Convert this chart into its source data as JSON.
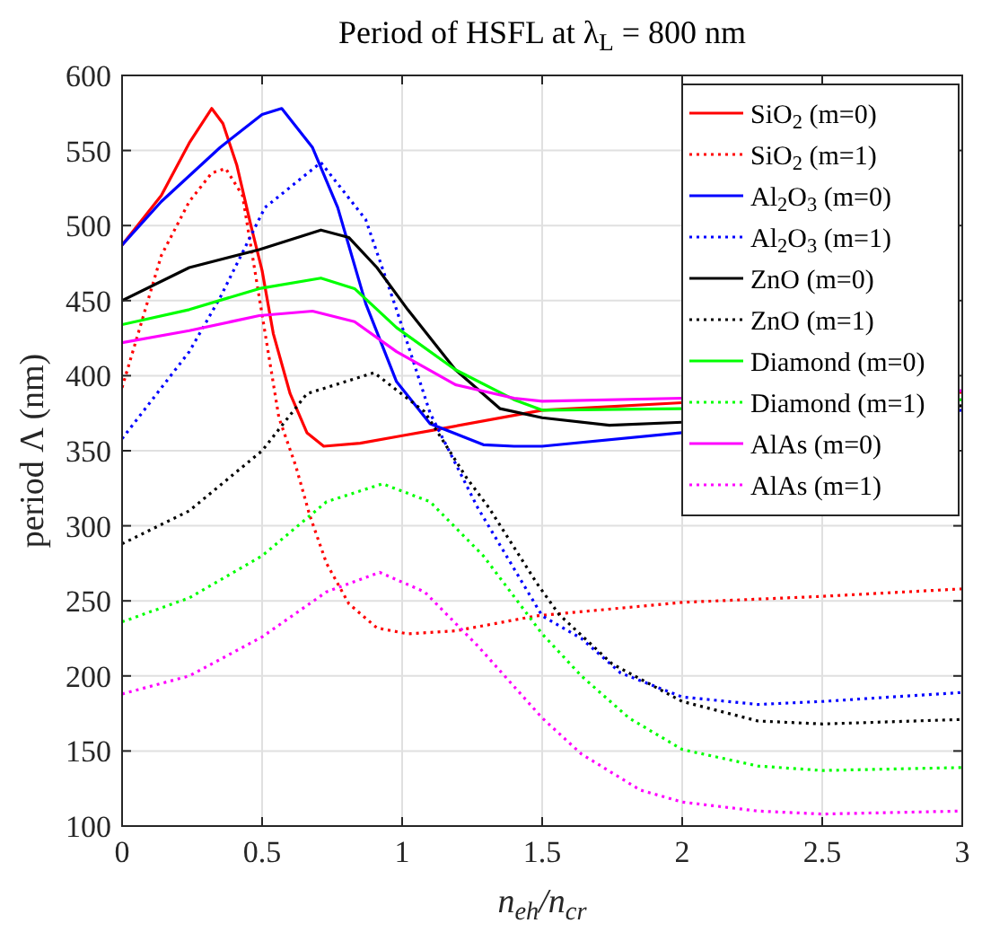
{
  "chart_data": {
    "type": "line",
    "title": "Period of HSFL at λ$_{L}$ = 800 nm",
    "xlabel": "n$_{eh}$/n$_{cr}$",
    "ylabel": "period Λ (nm)",
    "xlim": [
      0,
      3
    ],
    "ylim": [
      100,
      600
    ],
    "xticks": [
      0,
      0.5,
      1,
      1.5,
      2,
      2.5,
      3
    ],
    "yticks": [
      100,
      150,
      200,
      250,
      300,
      350,
      400,
      450,
      500,
      550,
      600
    ],
    "grid": true,
    "legend": "top right",
    "marker": "none",
    "series": [
      {
        "name": "SiO$_{2}$ (m=0)",
        "color": "#ff0000",
        "line_style": "solid",
        "x": [
          0,
          0.14,
          0.24,
          0.32,
          0.36,
          0.41,
          0.46,
          0.5,
          0.54,
          0.6,
          0.66,
          0.72,
          0.85,
          1,
          1.12,
          1.5,
          2,
          3
        ],
        "values": [
          487,
          520,
          555,
          578,
          568,
          540,
          500,
          470,
          428,
          388,
          362,
          353,
          355,
          360,
          364,
          377,
          382,
          389
        ]
      },
      {
        "name": "SiO$_{2}$ (m=1)",
        "color": "#ff0000",
        "line_style": "dotted",
        "x": [
          0,
          0.14,
          0.24,
          0.32,
          0.37,
          0.43,
          0.49,
          0.56,
          0.62,
          0.67,
          0.73,
          0.81,
          0.91,
          1.02,
          1.19,
          1.48,
          2,
          2.5,
          3
        ],
        "values": [
          392,
          480,
          516,
          535,
          538,
          520,
          452,
          372,
          340,
          307,
          275,
          248,
          232,
          228,
          230,
          240,
          249,
          253,
          258
        ]
      },
      {
        "name": "Al$_{2}$O$_{3}$ (m=0)",
        "color": "#0000ff",
        "line_style": "solid",
        "x": [
          0,
          0.14,
          0.35,
          0.5,
          0.57,
          0.68,
          0.77,
          0.87,
          0.98,
          1.1,
          1.29,
          1.4,
          1.5,
          2,
          3
        ],
        "values": [
          487,
          516,
          552,
          574,
          578,
          552,
          512,
          448,
          396,
          368,
          354,
          353,
          353,
          362,
          377
        ]
      },
      {
        "name": "Al$_{2}$O$_{3}$ (m=1)",
        "color": "#0000ff",
        "line_style": "dotted",
        "x": [
          0,
          0.24,
          0.35,
          0.51,
          0.71,
          0.87,
          0.98,
          1.1,
          1.27,
          1.5,
          1.64,
          1.78,
          2,
          2.27,
          2.5,
          3
        ],
        "values": [
          358,
          416,
          452,
          512,
          542,
          504,
          444,
          375,
          312,
          240,
          225,
          202,
          186,
          181,
          183,
          189
        ]
      },
      {
        "name": "ZnO (m=0)",
        "color": "#000000",
        "line_style": "solid",
        "x": [
          0,
          0.24,
          0.49,
          0.71,
          0.81,
          0.91,
          1.02,
          1.19,
          1.35,
          1.5,
          1.74,
          2,
          3
        ],
        "values": [
          450,
          472,
          484,
          497,
          492,
          472,
          444,
          404,
          378,
          372,
          367,
          369,
          380
        ]
      },
      {
        "name": "ZnO (m=1)",
        "color": "#000000",
        "line_style": "dotted",
        "x": [
          0,
          0.24,
          0.5,
          0.66,
          0.9,
          1.08,
          1.23,
          1.31,
          1.48,
          1.56,
          1.75,
          2,
          2.27,
          2.5,
          3
        ],
        "values": [
          288,
          310,
          350,
          388,
          402,
          376,
          332,
          312,
          262,
          241,
          208,
          183,
          170,
          168,
          171
        ]
      },
      {
        "name": "Diamond (m=0)",
        "color": "#00ff00",
        "line_style": "solid",
        "x": [
          0,
          0.24,
          0.49,
          0.71,
          0.83,
          0.98,
          1.19,
          1.4,
          1.5,
          2,
          3
        ],
        "values": [
          434,
          444,
          458,
          465,
          458,
          432,
          404,
          384,
          377,
          378,
          384
        ]
      },
      {
        "name": "Diamond (m=1)",
        "color": "#00ff00",
        "line_style": "dotted",
        "x": [
          0,
          0.24,
          0.5,
          0.73,
          0.93,
          1.1,
          1.29,
          1.5,
          1.64,
          1.81,
          2,
          2.27,
          2.5,
          3
        ],
        "values": [
          236,
          252,
          280,
          316,
          328,
          316,
          280,
          228,
          200,
          172,
          151,
          140,
          137,
          139
        ]
      },
      {
        "name": "AlAs (m=0)",
        "color": "#ff00ff",
        "line_style": "solid",
        "x": [
          0,
          0.24,
          0.49,
          0.68,
          0.83,
          0.98,
          1.19,
          1.4,
          1.5,
          2,
          3
        ],
        "values": [
          422,
          430,
          440,
          443,
          436,
          416,
          394,
          385,
          383,
          385,
          390
        ]
      },
      {
        "name": "AlAs (m=1)",
        "color": "#ff00ff",
        "line_style": "dotted",
        "x": [
          0,
          0.24,
          0.5,
          0.73,
          0.92,
          1.08,
          1.27,
          1.5,
          1.64,
          1.85,
          2,
          2.27,
          2.5,
          3
        ],
        "values": [
          188,
          200,
          226,
          256,
          269,
          256,
          220,
          172,
          148,
          124,
          116,
          110,
          108,
          110
        ]
      }
    ]
  }
}
